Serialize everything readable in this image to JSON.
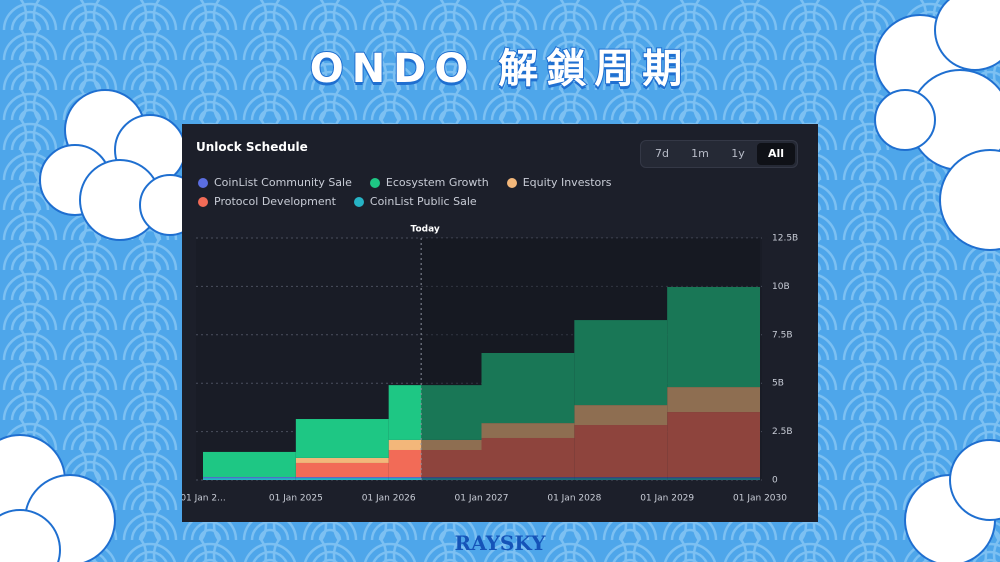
{
  "header": {
    "title": "ONDO 解鎖周期"
  },
  "panel": {
    "title": "Unlock Schedule",
    "ranges": [
      "7d",
      "1m",
      "1y",
      "All"
    ],
    "selected_range": "All"
  },
  "chart_data": {
    "type": "stacked-step-area",
    "x": [
      2024,
      2025,
      2026,
      2027,
      2028,
      2029
    ],
    "xlim": [
      2024,
      2030
    ],
    "xticks": [
      {
        "value": 2024,
        "label": "01 Jan 2..."
      },
      {
        "value": 2025,
        "label": "01 Jan 2025"
      },
      {
        "value": 2026,
        "label": "01 Jan 2026"
      },
      {
        "value": 2027,
        "label": "01 Jan 2027"
      },
      {
        "value": 2028,
        "label": "01 Jan 2028"
      },
      {
        "value": 2029,
        "label": "01 Jan 2029"
      },
      {
        "value": 2030,
        "label": "01 Jan 2030"
      }
    ],
    "ylim": [
      0,
      12.5
    ],
    "yticks": [
      0,
      {
        "value": 2.5,
        "label": "2.5B"
      },
      {
        "value": 5,
        "label": "5B"
      },
      {
        "value": 7.5,
        "label": "7.5B"
      },
      {
        "value": 10,
        "label": "10B"
      },
      {
        "value": 12.5,
        "label": "12.5B"
      }
    ],
    "grid": true,
    "today": {
      "label": "Today",
      "x": 2026.35
    },
    "series": [
      {
        "name": "CoinList Community Sale",
        "color": "#5b6ee1",
        "values": [
          0.05,
          0.05,
          0.05,
          0.05,
          0.05,
          0.05
        ]
      },
      {
        "name": "Ecosystem Growth",
        "color": "#1ec784",
        "values": [
          1.3,
          2.01,
          2.83,
          3.62,
          4.39,
          5.17
        ]
      },
      {
        "name": "Equity Investors",
        "color": "#f3b77a",
        "values": [
          0,
          0.26,
          0.52,
          0.77,
          1.03,
          1.29
        ]
      },
      {
        "name": "Protocol Development",
        "color": "#f26b57",
        "values": [
          0,
          0.73,
          1.4,
          2.02,
          2.69,
          3.36
        ]
      },
      {
        "name": "CoinList Public Sale",
        "color": "#26b3c5",
        "values": [
          0.1,
          0.1,
          0.1,
          0.1,
          0.1,
          0.1
        ]
      }
    ]
  },
  "footer": {
    "brand": "RAYSKY"
  }
}
